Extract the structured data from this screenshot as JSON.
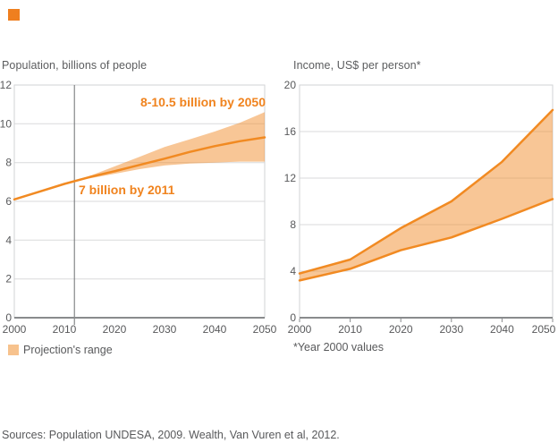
{
  "palette": {
    "logo_orange": "#ef7f1f",
    "accent_orange": "#f18a22",
    "band_fill": "#f18d2d",
    "band_visible": "#f8c79a",
    "legend_swatch": "#f7c28d",
    "grid": "#d9dadb",
    "frame": "#d2d3d5",
    "axis": "#898b8d",
    "marker_line": "#6d6e71",
    "text_gray": "#58595b",
    "annotation_orange": "#f0831e"
  },
  "legend": {
    "label": "Projection's range",
    "swatch_color": "#f7c28d"
  },
  "footnote": {
    "text": "*Year 2000 values"
  },
  "sources": {
    "text": "Sources: Population UNDESA, 2009. Wealth, Van Vuren et al, 2012."
  },
  "chart_data": [
    {
      "type": "area",
      "title": "Population, billions of people",
      "xlabel": "",
      "ylabel": "Population, billions of people",
      "xlim": [
        2000,
        2050
      ],
      "ylim": [
        0,
        12
      ],
      "xticks": [
        2000,
        2010,
        2020,
        2030,
        2040,
        2050
      ],
      "yticks": [
        0,
        2,
        4,
        6,
        8,
        10,
        12
      ],
      "grid": true,
      "marker_line_year": 2012,
      "tick_marks": false,
      "annotations": [
        {
          "text": "8-10.5 billion by 2050",
          "x": 2050,
          "y": 11.2,
          "align": "right"
        },
        {
          "text": "7 billion by 2011",
          "x": 2013,
          "y": 6.5,
          "align": "left"
        }
      ],
      "series": [
        {
          "name": "population central estimate",
          "role": "center",
          "stroke": true,
          "x": [
            2000,
            2005,
            2010,
            2015,
            2020,
            2025,
            2030,
            2035,
            2040,
            2045,
            2050
          ],
          "values": [
            6.1,
            6.5,
            6.9,
            7.25,
            7.55,
            7.88,
            8.2,
            8.55,
            8.85,
            9.1,
            9.3
          ]
        },
        {
          "name": "projection range upper (10.5 billion by 2050)",
          "role": "upper",
          "stroke": false,
          "x": [
            2011,
            2015,
            2020,
            2025,
            2030,
            2035,
            2040,
            2045,
            2050
          ],
          "values": [
            7.03,
            7.3,
            7.8,
            8.3,
            8.8,
            9.2,
            9.6,
            10.05,
            10.6
          ]
        },
        {
          "name": "projection range lower (8 billion by 2050)",
          "role": "lower",
          "stroke": false,
          "x": [
            2011,
            2015,
            2020,
            2025,
            2030,
            2035,
            2040,
            2045,
            2050
          ],
          "values": [
            7.03,
            7.18,
            7.42,
            7.66,
            7.85,
            7.95,
            8.0,
            8.05,
            8.05
          ]
        }
      ]
    },
    {
      "type": "area",
      "title": "Income, US$ per person*",
      "xlabel": "",
      "ylabel": "Income, US$ per person (Year 2000 values)",
      "xlim": [
        2000,
        2050
      ],
      "ylim": [
        0,
        20
      ],
      "xticks": [
        2000,
        2010,
        2020,
        2030,
        2040,
        2050
      ],
      "yticks": [
        0,
        4,
        8,
        12,
        16,
        20
      ],
      "grid": true,
      "tick_marks": true,
      "annotations": [],
      "series": [
        {
          "name": "income projection upper",
          "role": "upper",
          "stroke": true,
          "x": [
            2000,
            2010,
            2020,
            2030,
            2040,
            2050
          ],
          "values": [
            3.8,
            5.0,
            7.7,
            10.0,
            13.4,
            17.85
          ]
        },
        {
          "name": "income projection lower",
          "role": "lower",
          "stroke": true,
          "x": [
            2000,
            2010,
            2020,
            2030,
            2040,
            2050
          ],
          "values": [
            3.2,
            4.2,
            5.8,
            6.9,
            8.5,
            10.2
          ]
        }
      ]
    }
  ]
}
